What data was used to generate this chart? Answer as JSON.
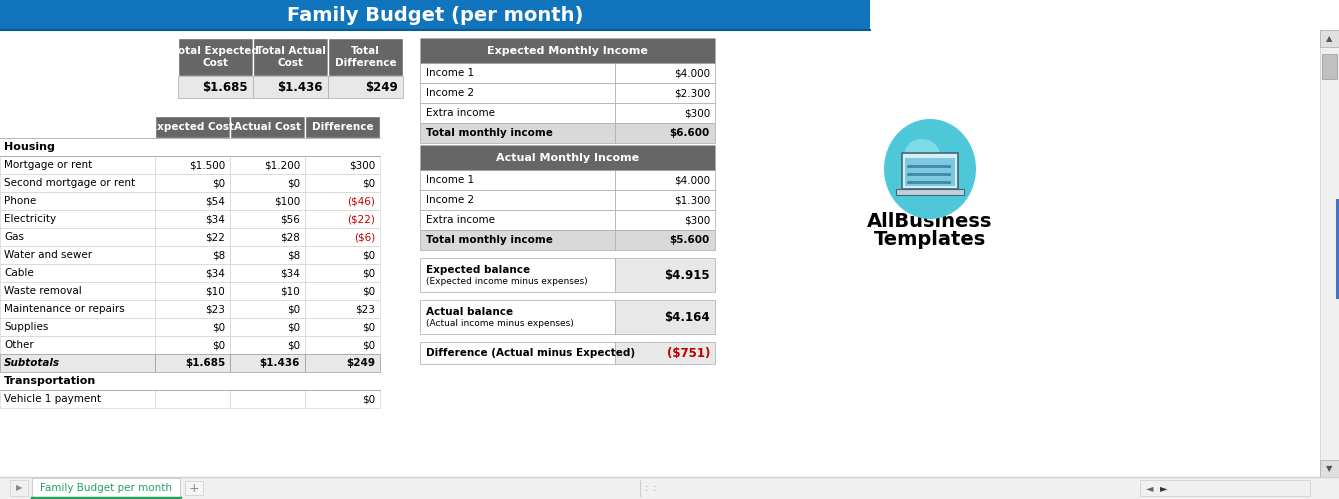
{
  "title": "Family Budget (per month)",
  "title_bg": "#1075bc",
  "title_color": "white",
  "title_fontsize": 14,
  "header_bg": "#666666",
  "header_color": "white",
  "subtotal_bg": "#e8e8e8",
  "total_monthly_bg": "#d9d9d9",
  "white_bg": "#ffffff",
  "light_gray_bg": "#f2f2f2",
  "border_color": "#aaaaaa",
  "summary_headers": [
    "Total Expected\nCost",
    "Total Actual\nCost",
    "Total\nDifference"
  ],
  "summary_values": [
    "$1.685",
    "$1.436",
    "$249"
  ],
  "detail_headers": [
    "Expected Cost",
    "Actual Cost",
    "Difference"
  ],
  "housing_label": "Housing",
  "housing_rows": [
    [
      "Mortgage or rent",
      "$1.500",
      "$1.200",
      "$300"
    ],
    [
      "Second mortgage or rent",
      "$0",
      "$0",
      "$0"
    ],
    [
      "Phone",
      "$54",
      "$100",
      "($46)"
    ],
    [
      "Electricity",
      "$34",
      "$56",
      "($22)"
    ],
    [
      "Gas",
      "$22",
      "$28",
      "($6)"
    ],
    [
      "Water and sewer",
      "$8",
      "$8",
      "$0"
    ],
    [
      "Cable",
      "$34",
      "$34",
      "$0"
    ],
    [
      "Waste removal",
      "$10",
      "$10",
      "$0"
    ],
    [
      "Maintenance or repairs",
      "$23",
      "$0",
      "$23"
    ],
    [
      "Supplies",
      "$0",
      "$0",
      "$0"
    ],
    [
      "Other",
      "$0",
      "$0",
      "$0"
    ]
  ],
  "subtotals_label": "Subtotals",
  "subtotals_values": [
    "$1.685",
    "$1.436",
    "$249"
  ],
  "transport_label": "Transportation",
  "transport_rows": [
    [
      "Vehicle 1 payment",
      "",
      "",
      "$0"
    ]
  ],
  "income_header": "Expected Monthly Income",
  "expected_income_rows": [
    [
      "Income 1",
      "$4.000"
    ],
    [
      "Income 2",
      "$2.300"
    ],
    [
      "Extra income",
      "$300"
    ],
    [
      "Total monthly income",
      "$6.600"
    ]
  ],
  "actual_income_header": "Actual Monthly Income",
  "actual_income_rows": [
    [
      "Income 1",
      "$4.000"
    ],
    [
      "Income 2",
      "$1.300"
    ],
    [
      "Extra income",
      "$300"
    ],
    [
      "Total monthly income",
      "$5.600"
    ]
  ],
  "expected_balance_label": "Expected balance\n(Expected income minus expenses)",
  "expected_balance_value": "$4.915",
  "actual_balance_label": "Actual balance\n(Actual income minus expenses)",
  "actual_balance_value": "$4.164",
  "difference_label": "Difference (Actual minus Expected)",
  "difference_value": "($751)",
  "tab_label": "Family Budget per month",
  "tab_color": "#21a366",
  "negative_color": "#c00000",
  "positive_color": "#000000",
  "logo_text_line1": "AllBusiness",
  "logo_text_line2": "Templates",
  "logo_circle_color": "#4ec8d8",
  "logo_circle_inner": "#b8eef6"
}
